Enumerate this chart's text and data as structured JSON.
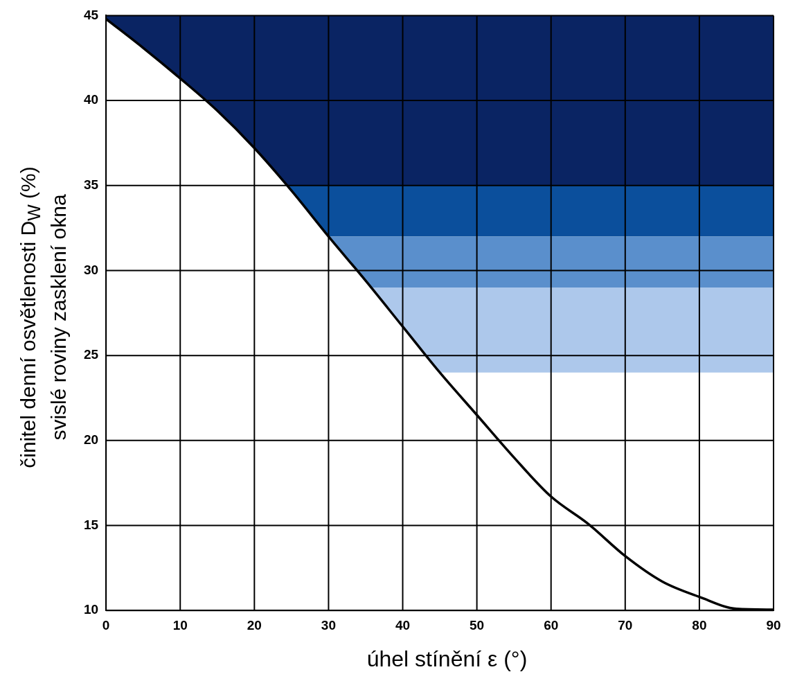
{
  "chart_data": {
    "type": "line",
    "xlabel": "úhel stínění ε (°)",
    "ylabel": "činitel denní osvětlenosti D$_{W}$ (%)\nsvislé roviny zasklení okna",
    "x": [
      0,
      5,
      10,
      15,
      20,
      25,
      30,
      35,
      40,
      45,
      50,
      55,
      60,
      65,
      70,
      75,
      80,
      85,
      90
    ],
    "series": [
      {
        "color": "#000000",
        "values": [
          44.8,
          43.1,
          41.3,
          39.4,
          37.2,
          34.7,
          32,
          29.4,
          26.7,
          24,
          21.5,
          19,
          16.7,
          15.1,
          13.2,
          11.7,
          10.8,
          10.1,
          10.05
        ]
      }
    ],
    "bands": [
      {
        "axis": "y",
        "from": 35,
        "to": 45,
        "color": "#0a2463"
      },
      {
        "axis": "y",
        "from": 32,
        "to": 35,
        "color": "#0b4f9c"
      },
      {
        "axis": "y",
        "from": 29,
        "to": 32,
        "color": "#5a8fcc"
      },
      {
        "axis": "y",
        "from": 24,
        "to": 29,
        "color": "#adc8eb"
      }
    ],
    "xlim": [
      0,
      90
    ],
    "xticks": [
      0,
      10,
      20,
      30,
      40,
      50,
      60,
      70,
      80,
      90
    ],
    "ylim": [
      10,
      45
    ],
    "yticks": [
      10,
      15,
      20,
      25,
      30,
      35,
      40,
      45
    ],
    "grid": true,
    "legend": false,
    "marker": "none",
    "line_style": "solid"
  }
}
